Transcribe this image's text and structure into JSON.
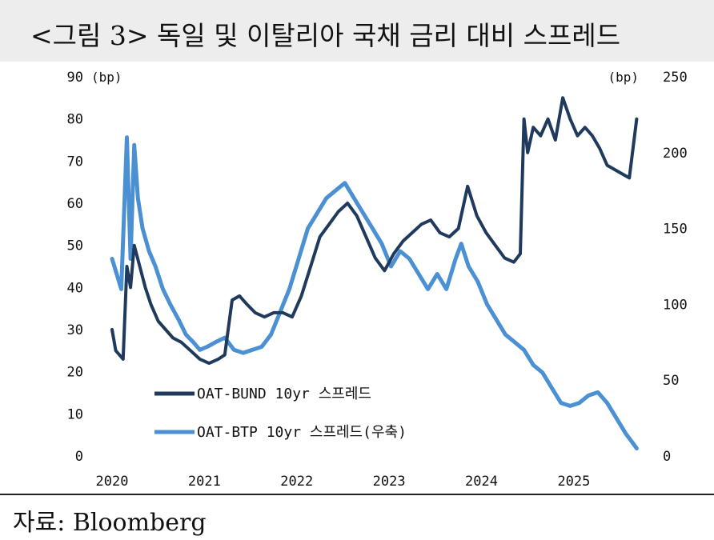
{
  "header": {
    "title": "<그림 3> 독일 및 이탈리아 국채 금리 대비 스프레드"
  },
  "footer": {
    "source": "자료: Bloomberg"
  },
  "chart_data": {
    "type": "line",
    "title": "",
    "x_ticks": [
      "2020",
      "2021",
      "2022",
      "2023",
      "2024",
      "2025"
    ],
    "xlim": [
      2020.0,
      2025.85
    ],
    "y_left": {
      "unit": "(bp)",
      "range": [
        0,
        90
      ],
      "ticks": [
        0,
        10,
        20,
        30,
        40,
        50,
        60,
        70,
        80,
        90
      ]
    },
    "y_right": {
      "unit": "(bp)",
      "range": [
        0,
        250
      ],
      "ticks": [
        0,
        50,
        100,
        150,
        200,
        250
      ]
    },
    "grid": false,
    "legend": {
      "placement": "lower-left"
    },
    "series": [
      {
        "name": "OAT-BUND 10yr 스프레드",
        "axis": "left",
        "color": "#1f3a5c",
        "x": [
          2020.0,
          2020.04,
          2020.08,
          2020.12,
          2020.16,
          2020.2,
          2020.24,
          2020.3,
          2020.36,
          2020.42,
          2020.5,
          2020.58,
          2020.66,
          2020.75,
          2020.85,
          2020.95,
          2021.05,
          2021.15,
          2021.22,
          2021.3,
          2021.38,
          2021.46,
          2021.55,
          2021.65,
          2021.75,
          2021.85,
          2021.95,
          2022.05,
          2022.15,
          2022.25,
          2022.35,
          2022.45,
          2022.55,
          2022.65,
          2022.75,
          2022.85,
          2022.95,
          2023.05,
          2023.15,
          2023.25,
          2023.35,
          2023.45,
          2023.55,
          2023.65,
          2023.75,
          2023.85,
          2023.95,
          2024.05,
          2024.15,
          2024.25,
          2024.35,
          2024.42,
          2024.46,
          2024.5,
          2024.56,
          2024.64,
          2024.72,
          2024.8,
          2024.88,
          2024.96,
          2025.04,
          2025.12,
          2025.2,
          2025.28,
          2025.36,
          2025.44,
          2025.52,
          2025.6,
          2025.68
        ],
        "values": [
          30,
          25,
          24,
          23,
          45,
          40,
          50,
          45,
          40,
          36,
          32,
          30,
          28,
          27,
          25,
          23,
          22,
          23,
          24,
          37,
          38,
          36,
          34,
          33,
          34,
          34,
          33,
          38,
          45,
          52,
          55,
          58,
          60,
          57,
          52,
          47,
          44,
          48,
          51,
          53,
          55,
          56,
          53,
          52,
          54,
          64,
          57,
          53,
          50,
          47,
          46,
          48,
          80,
          72,
          78,
          76,
          80,
          75,
          85,
          80,
          76,
          78,
          76,
          73,
          69,
          68,
          67,
          66,
          80
        ]
      },
      {
        "name": "OAT-BTP 10yr 스프레드(우축)",
        "axis": "right",
        "color": "#4a90d2",
        "x": [
          2020.0,
          2020.05,
          2020.1,
          2020.16,
          2020.2,
          2020.24,
          2020.28,
          2020.33,
          2020.4,
          2020.47,
          2020.55,
          2020.63,
          2020.72,
          2020.8,
          2020.88,
          2020.95,
          2021.03,
          2021.12,
          2021.22,
          2021.32,
          2021.42,
          2021.52,
          2021.62,
          2021.72,
          2021.82,
          2021.92,
          2022.02,
          2022.12,
          2022.22,
          2022.32,
          2022.42,
          2022.52,
          2022.62,
          2022.72,
          2022.82,
          2022.92,
          2023.02,
          2023.12,
          2023.22,
          2023.32,
          2023.42,
          2023.52,
          2023.62,
          2023.72,
          2023.78,
          2023.86,
          2023.96,
          2024.06,
          2024.16,
          2024.26,
          2024.36,
          2024.46,
          2024.56,
          2024.66,
          2024.76,
          2024.86,
          2024.96,
          2025.06,
          2025.16,
          2025.26,
          2025.36,
          2025.46,
          2025.56,
          2025.62,
          2025.68
        ],
        "values": [
          130,
          120,
          110,
          210,
          130,
          205,
          170,
          150,
          135,
          125,
          110,
          100,
          90,
          80,
          75,
          70,
          72,
          75,
          78,
          70,
          68,
          70,
          72,
          80,
          95,
          110,
          130,
          150,
          160,
          170,
          175,
          180,
          170,
          160,
          150,
          140,
          125,
          135,
          130,
          120,
          110,
          120,
          110,
          130,
          140,
          125,
          115,
          100,
          90,
          80,
          75,
          70,
          60,
          55,
          45,
          35,
          33,
          35,
          40,
          42,
          35,
          25,
          15,
          10,
          5
        ]
      }
    ]
  }
}
